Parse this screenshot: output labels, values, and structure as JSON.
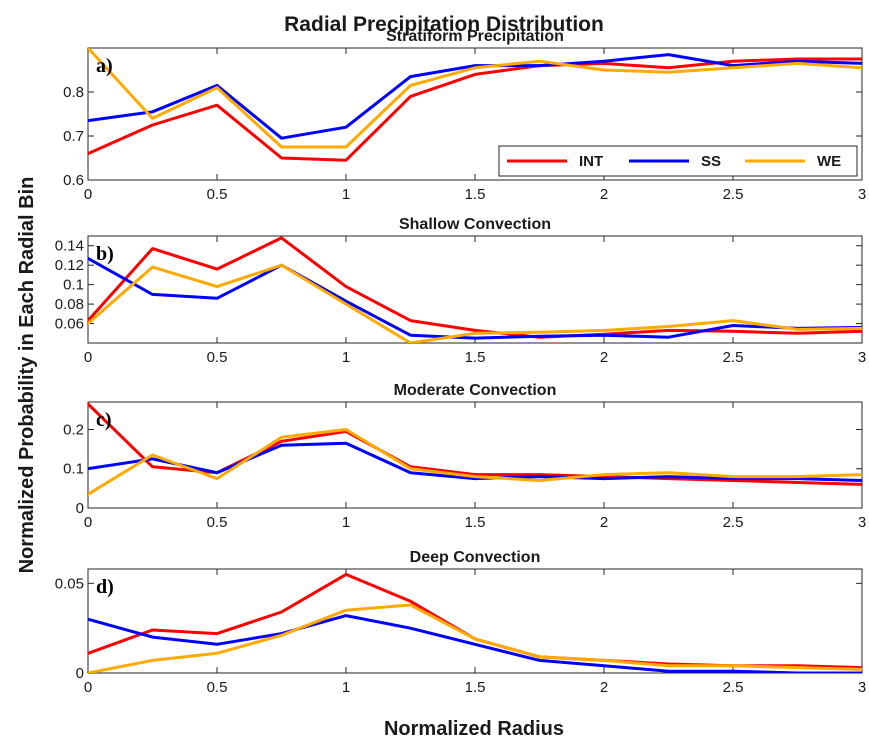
{
  "figure": {
    "title": "Radial Precipitation Distribution",
    "xlabel": "Normalized Radius",
    "ylabel": "Normalized Probability in Each Radial Bin"
  },
  "legend": [
    {
      "name": "INT",
      "color": "#ff0000"
    },
    {
      "name": "SS",
      "color": "#0000ff"
    },
    {
      "name": "WE",
      "color": "#ffaa00"
    }
  ],
  "chart_data": [
    {
      "type": "line",
      "panel_label": "a)",
      "title": "Stratiform Precipitation",
      "x": [
        0,
        0.25,
        0.5,
        0.75,
        1,
        1.25,
        1.5,
        1.75,
        2,
        2.25,
        2.5,
        2.75,
        3
      ],
      "xlim": [
        0,
        3
      ],
      "ylim": [
        0.6,
        0.9
      ],
      "xticks": [
        0,
        0.5,
        1,
        1.5,
        2,
        2.5,
        3
      ],
      "xticklabels": [
        "0",
        "0.5",
        "1",
        "1.5",
        "2",
        "2.5",
        "3"
      ],
      "yticks": [
        0.6,
        0.7,
        0.8
      ],
      "yticklabels": [
        "0.6",
        "0.7",
        "0.8"
      ],
      "legend_position": "lower-right",
      "series": [
        {
          "name": "INT",
          "values": [
            0.66,
            0.725,
            0.77,
            0.65,
            0.645,
            0.79,
            0.84,
            0.86,
            0.865,
            0.855,
            0.87,
            0.875,
            0.875
          ]
        },
        {
          "name": "SS",
          "values": [
            0.735,
            0.755,
            0.815,
            0.695,
            0.72,
            0.835,
            0.86,
            0.86,
            0.87,
            0.885,
            0.86,
            0.87,
            0.865
          ]
        },
        {
          "name": "WE",
          "values": [
            0.9,
            0.74,
            0.81,
            0.675,
            0.675,
            0.815,
            0.855,
            0.87,
            0.85,
            0.845,
            0.855,
            0.865,
            0.855
          ]
        }
      ]
    },
    {
      "type": "line",
      "panel_label": "b)",
      "title": "Shallow Convection",
      "x": [
        0,
        0.25,
        0.5,
        0.75,
        1,
        1.25,
        1.5,
        1.75,
        2,
        2.25,
        2.5,
        2.75,
        3
      ],
      "xlim": [
        0,
        3
      ],
      "ylim": [
        0.04,
        0.15
      ],
      "xticks": [
        0,
        0.5,
        1,
        1.5,
        2,
        2.5,
        3
      ],
      "xticklabels": [
        "0",
        "0.5",
        "1",
        "1.5",
        "2",
        "2.5",
        "3"
      ],
      "yticks": [
        0.06,
        0.08,
        0.1,
        0.12,
        0.14
      ],
      "yticklabels": [
        "0.06",
        "0.08",
        "0.1",
        "0.12",
        "0.14"
      ],
      "series": [
        {
          "name": "INT",
          "values": [
            0.063,
            0.137,
            0.116,
            0.148,
            0.098,
            0.063,
            0.053,
            0.046,
            0.049,
            0.053,
            0.052,
            0.05,
            0.052
          ]
        },
        {
          "name": "SS",
          "values": [
            0.127,
            0.09,
            0.086,
            0.12,
            0.083,
            0.048,
            0.045,
            0.047,
            0.048,
            0.046,
            0.058,
            0.055,
            0.056
          ]
        },
        {
          "name": "WE",
          "values": [
            0.06,
            0.118,
            0.098,
            0.12,
            0.08,
            0.04,
            0.05,
            0.051,
            0.053,
            0.057,
            0.063,
            0.054,
            0.055
          ]
        }
      ]
    },
    {
      "type": "line",
      "panel_label": "c)",
      "title": "Moderate Convection",
      "x": [
        0,
        0.25,
        0.5,
        0.75,
        1,
        1.25,
        1.5,
        1.75,
        2,
        2.25,
        2.5,
        2.75,
        3
      ],
      "xlim": [
        0,
        3
      ],
      "ylim": [
        0,
        0.27
      ],
      "xticks": [
        0,
        0.5,
        1,
        1.5,
        2,
        2.5,
        3
      ],
      "xticklabels": [
        "0",
        "0.5",
        "1",
        "1.5",
        "2",
        "2.5",
        "3"
      ],
      "yticks": [
        0,
        0.1,
        0.2
      ],
      "yticklabels": [
        "0",
        "0.1",
        "0.2"
      ],
      "series": [
        {
          "name": "INT",
          "values": [
            0.265,
            0.105,
            0.09,
            0.17,
            0.195,
            0.105,
            0.085,
            0.085,
            0.08,
            0.075,
            0.07,
            0.065,
            0.06
          ]
        },
        {
          "name": "SS",
          "values": [
            0.1,
            0.125,
            0.09,
            0.16,
            0.165,
            0.09,
            0.075,
            0.08,
            0.075,
            0.08,
            0.075,
            0.075,
            0.07
          ]
        },
        {
          "name": "WE",
          "values": [
            0.035,
            0.135,
            0.075,
            0.18,
            0.2,
            0.1,
            0.08,
            0.07,
            0.085,
            0.09,
            0.08,
            0.08,
            0.085
          ]
        }
      ]
    },
    {
      "type": "line",
      "panel_label": "d)",
      "title": "Deep Convection",
      "x": [
        0,
        0.25,
        0.5,
        0.75,
        1,
        1.25,
        1.5,
        1.75,
        2,
        2.25,
        2.5,
        2.75,
        3
      ],
      "xlim": [
        0,
        3
      ],
      "ylim": [
        0,
        0.058
      ],
      "xticks": [
        0,
        0.5,
        1,
        1.5,
        2,
        2.5,
        3
      ],
      "xticklabels": [
        "0",
        "0.5",
        "1",
        "1.5",
        "2",
        "2.5",
        "3"
      ],
      "yticks": [
        0,
        0.05
      ],
      "yticklabels": [
        "0",
        "0.05"
      ],
      "series": [
        {
          "name": "INT",
          "values": [
            0.011,
            0.024,
            0.022,
            0.034,
            0.055,
            0.04,
            0.019,
            0.009,
            0.007,
            0.005,
            0.004,
            0.004,
            0.003
          ]
        },
        {
          "name": "SS",
          "values": [
            0.03,
            0.02,
            0.016,
            0.022,
            0.032,
            0.025,
            0.016,
            0.007,
            0.004,
            0.001,
            0.001,
            0.0,
            0.0
          ]
        },
        {
          "name": "WE",
          "values": [
            0.0,
            0.007,
            0.011,
            0.021,
            0.035,
            0.038,
            0.019,
            0.009,
            0.007,
            0.004,
            0.004,
            0.003,
            0.002
          ]
        }
      ]
    }
  ]
}
